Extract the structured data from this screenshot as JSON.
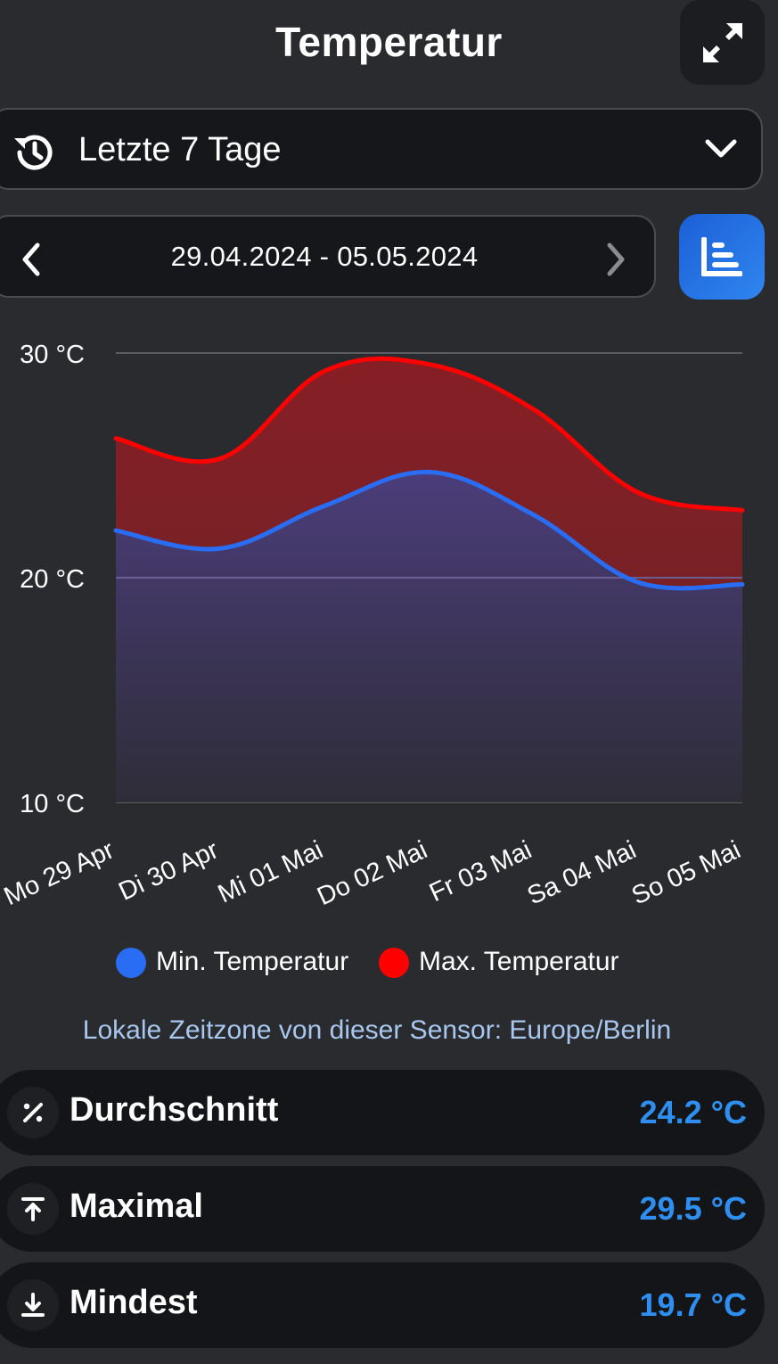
{
  "header": {
    "title": "Temperatur"
  },
  "range_select": {
    "label": "Letzte 7 Tage"
  },
  "date_nav": {
    "range": "29.04.2024 - 05.05.2024"
  },
  "chart_data": {
    "type": "area",
    "categories": [
      "Mo 29 Apr",
      "Di 30 Apr",
      "Mi 01 Mai",
      "Do 02 Mai",
      "Fr 03 Mai",
      "Sa 04 Mai",
      "So 05 Mai"
    ],
    "y_ticks": [
      "30 °C",
      "20 °C",
      "10 °C"
    ],
    "ylim": [
      10,
      30
    ],
    "grid": true,
    "series": [
      {
        "name": "Min. Temperatur",
        "color": "#2a6df5",
        "values": [
          22.1,
          21.3,
          23.2,
          24.7,
          22.8,
          19.8,
          19.7
        ]
      },
      {
        "name": "Max. Temperatur",
        "color": "#ff0000",
        "values": [
          26.2,
          25.3,
          29.2,
          29.5,
          27.5,
          23.8,
          23.0
        ]
      }
    ],
    "legend_position": "bottom"
  },
  "timezone_note": "Lokale Zeitzone von dieser Sensor: Europe/Berlin",
  "stats": [
    {
      "label": "Durchschnitt",
      "value": "24.2 °C",
      "icon": "percent-icon"
    },
    {
      "label": "Maximal",
      "value": "29.5 °C",
      "icon": "arrow-up-to-line-icon"
    },
    {
      "label": "Mindest",
      "value": "19.7 °C",
      "icon": "arrow-down-to-line-icon"
    }
  ]
}
